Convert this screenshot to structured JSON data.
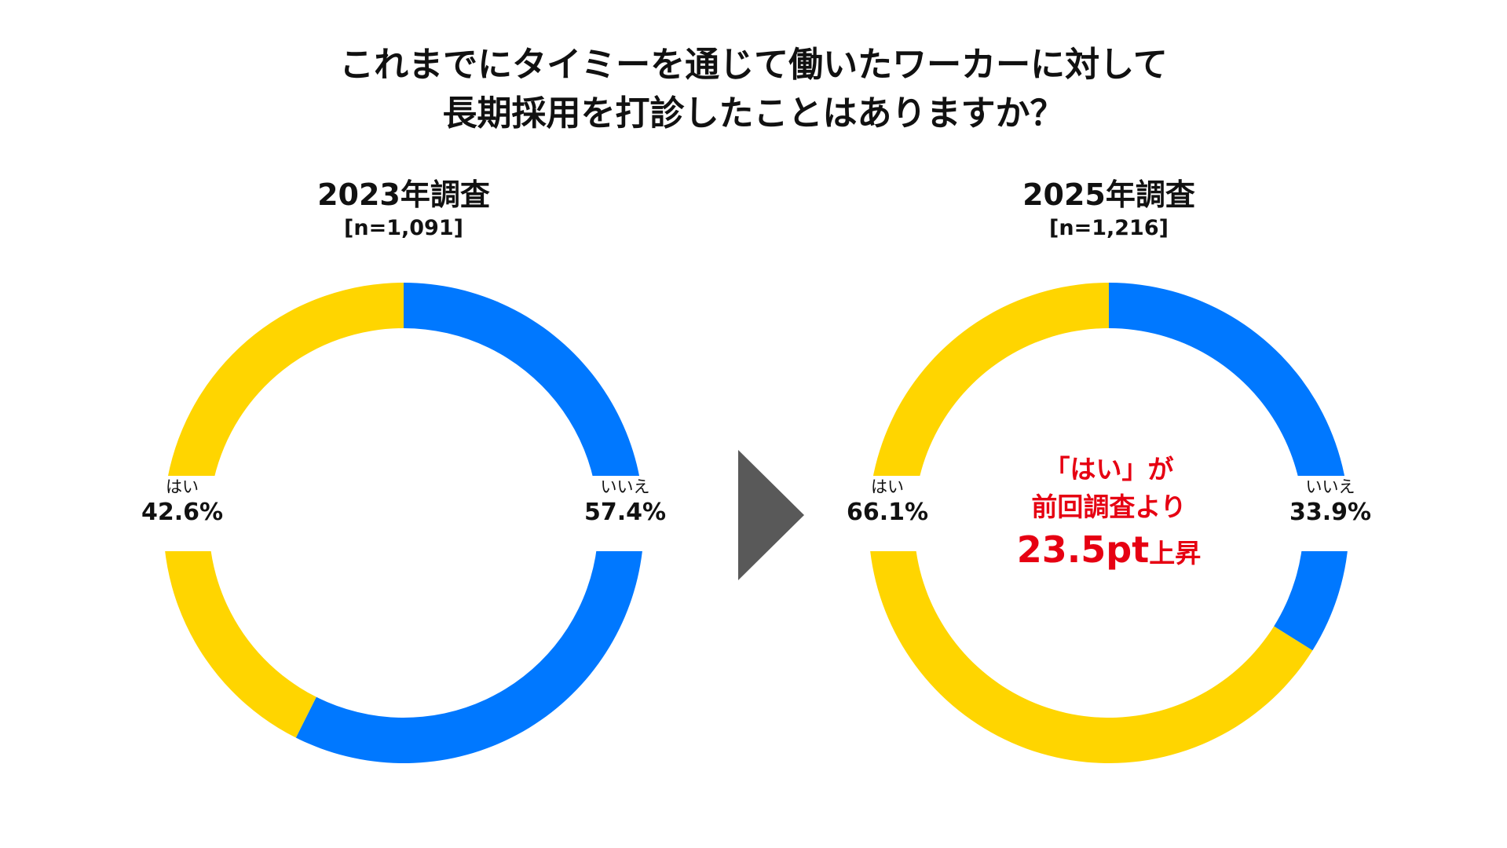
{
  "title": {
    "line1": "これまでにタイミーを通じて働いたワーカーに対して",
    "line2": "長期採用を打診したことはありますか？"
  },
  "colors": {
    "yes": "#ffd500",
    "no": "#0078ff",
    "accent": "#e60012",
    "arrow": "#595959"
  },
  "note": {
    "line1": "「はい」が",
    "line2": "前回調査より",
    "value": "23.5pt",
    "suffix": "上昇"
  },
  "chart_data": [
    {
      "type": "pie",
      "title": "2023年調査",
      "subtitle": "[n=1,091]",
      "slices": [
        {
          "label": "いいえ",
          "value": 57.4,
          "display": "57.4%",
          "color": "#0078ff"
        },
        {
          "label": "はい",
          "value": 42.6,
          "display": "42.6%",
          "color": "#ffd500"
        }
      ]
    },
    {
      "type": "pie",
      "title": "2025年調査",
      "subtitle": "[n=1,216]",
      "slices": [
        {
          "label": "いいえ",
          "value": 33.9,
          "display": "33.9%",
          "color": "#0078ff"
        },
        {
          "label": "はい",
          "value": 66.1,
          "display": "66.1%",
          "color": "#ffd500"
        }
      ]
    }
  ]
}
